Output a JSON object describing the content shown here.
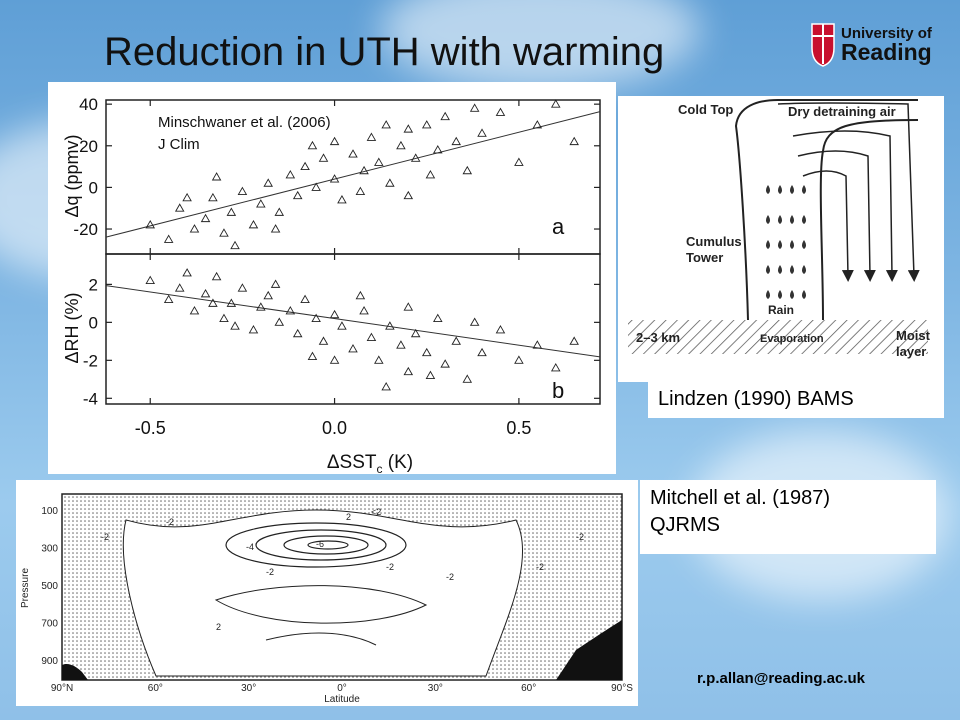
{
  "slide": {
    "title": "Reduction in UTH with warming",
    "email": "r.p.allan@reading.ac.uk",
    "logo_text": [
      "University of",
      "Reading"
    ]
  },
  "chart_data": [
    {
      "type": "scatter",
      "panel": "a",
      "citation": [
        "Minschwaner et al. (2006)",
        "J Clim"
      ],
      "ylabel": "Δq (ppmv)",
      "xlabel": "ΔSST_c (K)",
      "xlim": [
        -0.62,
        0.72
      ],
      "ylim": [
        -32,
        42
      ],
      "xticks": [
        "-0.5",
        "0.0",
        "0.5"
      ],
      "yticks": [
        "40",
        "20",
        "0",
        "-20"
      ],
      "fit_line": {
        "slope": 45,
        "intercept": 4
      },
      "points": [
        [
          -0.5,
          -18
        ],
        [
          -0.45,
          -25
        ],
        [
          -0.42,
          -10
        ],
        [
          -0.38,
          -20
        ],
        [
          -0.35,
          -15
        ],
        [
          -0.33,
          -5
        ],
        [
          -0.3,
          -22
        ],
        [
          -0.28,
          -12
        ],
        [
          -0.25,
          -2
        ],
        [
          -0.22,
          -18
        ],
        [
          -0.2,
          -8
        ],
        [
          -0.18,
          2
        ],
        [
          -0.15,
          -12
        ],
        [
          -0.12,
          6
        ],
        [
          -0.1,
          -4
        ],
        [
          -0.08,
          10
        ],
        [
          -0.05,
          0
        ],
        [
          -0.03,
          14
        ],
        [
          0.0,
          4
        ],
        [
          0.02,
          -6
        ],
        [
          0.05,
          16
        ],
        [
          0.08,
          8
        ],
        [
          0.1,
          24
        ],
        [
          0.12,
          12
        ],
        [
          0.15,
          2
        ],
        [
          0.18,
          20
        ],
        [
          0.2,
          28
        ],
        [
          0.22,
          14
        ],
        [
          0.25,
          30
        ],
        [
          0.28,
          18
        ],
        [
          0.3,
          34
        ],
        [
          0.33,
          22
        ],
        [
          0.36,
          8
        ],
        [
          0.4,
          26
        ],
        [
          0.45,
          36
        ],
        [
          0.5,
          12
        ],
        [
          0.55,
          30
        ],
        [
          0.6,
          40
        ],
        [
          0.65,
          22
        ],
        [
          -0.4,
          -5
        ],
        [
          -0.27,
          -28
        ],
        [
          -0.16,
          -20
        ],
        [
          -0.06,
          20
        ],
        [
          0.07,
          -2
        ],
        [
          0.14,
          30
        ],
        [
          0.26,
          6
        ],
        [
          0.38,
          38
        ],
        [
          -0.32,
          5
        ],
        [
          0.0,
          22
        ],
        [
          0.2,
          -4
        ]
      ]
    },
    {
      "type": "scatter",
      "panel": "b",
      "ylabel": "ΔRH (%)",
      "xlabel": "ΔSST_c (K)",
      "xlim": [
        -0.62,
        0.72
      ],
      "ylim": [
        -4.3,
        3.6
      ],
      "xticks": [
        "-0.5",
        "0.0",
        "0.5"
      ],
      "yticks": [
        "2",
        "0",
        "-2",
        "-4"
      ],
      "fit_line": {
        "slope": -2.8,
        "intercept": 0.2
      },
      "points": [
        [
          -0.5,
          2.2
        ],
        [
          -0.45,
          1.2
        ],
        [
          -0.42,
          1.8
        ],
        [
          -0.38,
          0.6
        ],
        [
          -0.35,
          1.5
        ],
        [
          -0.32,
          2.4
        ],
        [
          -0.3,
          0.2
        ],
        [
          -0.28,
          1.0
        ],
        [
          -0.25,
          1.8
        ],
        [
          -0.22,
          -0.4
        ],
        [
          -0.2,
          0.8
        ],
        [
          -0.18,
          1.4
        ],
        [
          -0.15,
          0.0
        ],
        [
          -0.12,
          0.6
        ],
        [
          -0.1,
          -0.6
        ],
        [
          -0.08,
          1.2
        ],
        [
          -0.05,
          0.2
        ],
        [
          -0.03,
          -1.0
        ],
        [
          0.0,
          0.4
        ],
        [
          0.02,
          -0.2
        ],
        [
          0.05,
          -1.4
        ],
        [
          0.08,
          0.6
        ],
        [
          0.1,
          -0.8
        ],
        [
          0.12,
          -2.0
        ],
        [
          0.15,
          -0.2
        ],
        [
          0.18,
          -1.2
        ],
        [
          0.2,
          -2.6
        ],
        [
          0.22,
          -0.6
        ],
        [
          0.25,
          -1.6
        ],
        [
          0.28,
          0.2
        ],
        [
          0.3,
          -2.2
        ],
        [
          0.33,
          -1.0
        ],
        [
          0.36,
          -3.0
        ],
        [
          0.4,
          -1.6
        ],
        [
          0.45,
          -0.4
        ],
        [
          0.5,
          -2.0
        ],
        [
          0.55,
          -1.2
        ],
        [
          0.6,
          -2.4
        ],
        [
          0.65,
          -1.0
        ],
        [
          -0.4,
          2.6
        ],
        [
          -0.27,
          -0.2
        ],
        [
          -0.16,
          2.0
        ],
        [
          -0.06,
          -1.8
        ],
        [
          0.07,
          1.4
        ],
        [
          0.14,
          -3.4
        ],
        [
          0.26,
          -2.8
        ],
        [
          0.38,
          0.0
        ],
        [
          -0.33,
          1.0
        ],
        [
          0.0,
          -2.0
        ],
        [
          0.2,
          0.8
        ]
      ]
    },
    {
      "type": "contour",
      "citation": [
        "Mitchell et al. (1987)",
        "QJRMS"
      ],
      "ylabel": "Pressure",
      "xlabel": "Latitude",
      "yticks": [
        "100",
        "300",
        "500",
        "700",
        "900"
      ],
      "xticks": [
        "90°N",
        "60°",
        "30°",
        "0°",
        "30°",
        "60°",
        "90°S"
      ],
      "contour_labels": [
        "-2",
        "-2",
        "-4",
        "-6",
        "-2",
        "-2",
        "-2",
        "2",
        "-2",
        "2",
        "<2",
        "-2"
      ]
    }
  ],
  "lindzen": {
    "caption": "Lindzen (1990) BAMS",
    "labels": {
      "cold_top": "Cold Top",
      "dry_air": "Dry detraining air",
      "tower": [
        "Cumulus",
        "Tower"
      ],
      "rain": "Rain",
      "height": "2–3 km",
      "evaporation": "Evaporation",
      "moist": [
        "Moist",
        "layer"
      ]
    }
  },
  "colors": {
    "background": "#7fb6e3",
    "logo_red": "#c8102e",
    "text": "#111111"
  }
}
